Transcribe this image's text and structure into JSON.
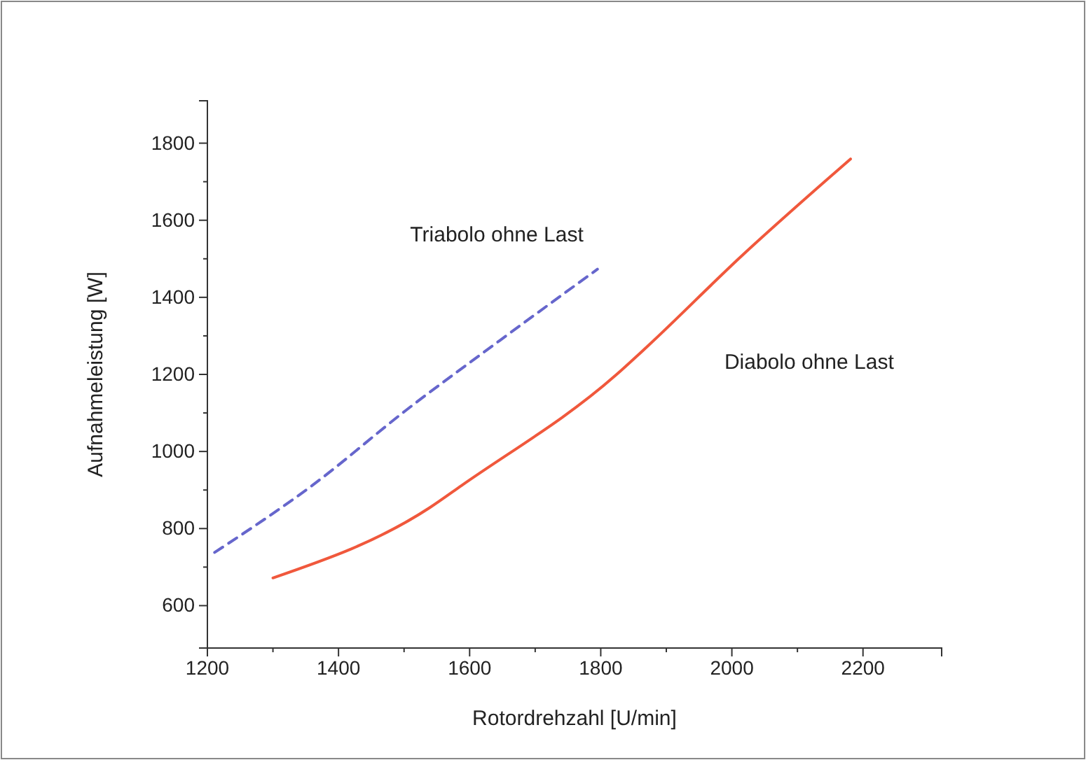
{
  "chart_data": {
    "type": "line",
    "xlabel": "Rotordrehzahl [U/min]",
    "ylabel": "Aufnahmeleistung [W]",
    "xlim": [
      1200,
      2320
    ],
    "xticks": [
      1200,
      1400,
      1600,
      1800,
      2000,
      2200
    ],
    "ylim": [
      490,
      1910
    ],
    "yticks": [
      600,
      800,
      1000,
      1200,
      1400,
      1600,
      1800
    ],
    "grid": false,
    "legend": false,
    "marker": "none",
    "series": [
      {
        "name": "Triabolo ohne Last",
        "color": "#6666cc",
        "line_style": "dashed",
        "x": [
          1211,
          1360,
          1503,
          1646,
          1795
        ],
        "values": [
          738,
          912,
          1107,
          1288,
          1473
        ]
      },
      {
        "name": "Diabolo ohne Last",
        "color": "#f0583c",
        "line_style": "solid",
        "x": [
          1300,
          1539,
          1588,
          1823,
          1872,
          2014,
          2181
        ],
        "values": [
          672,
          854,
          912,
          1198,
          1274,
          1506,
          1759
        ]
      }
    ]
  }
}
